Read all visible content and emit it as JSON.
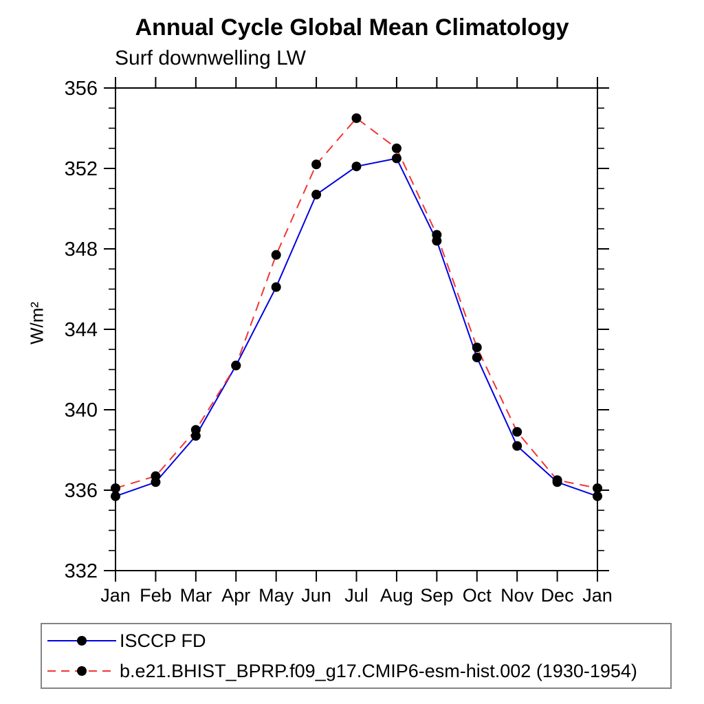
{
  "chart_data": {
    "type": "line",
    "title": "Annual Cycle Global Mean Climatology",
    "subtitle": "Surf downwelling LW",
    "ylabel": "W/m²",
    "xlabel": "",
    "categories": [
      "Jan",
      "Feb",
      "Mar",
      "Apr",
      "May",
      "Jun",
      "Jul",
      "Aug",
      "Sep",
      "Oct",
      "Nov",
      "Dec",
      "Jan"
    ],
    "ylim": [
      332,
      356
    ],
    "y_major_ticks": [
      332,
      336,
      340,
      344,
      348,
      352,
      356
    ],
    "y_minor_step": 1,
    "grid": false,
    "legend_position": "bottom-left",
    "marker": {
      "shape": "circle",
      "color": "#000000",
      "radius": 7
    },
    "series": [
      {
        "name": "ISCCP FD",
        "color": "#0000e0",
        "line_style": "solid",
        "values": [
          335.7,
          336.4,
          338.7,
          342.2,
          346.1,
          350.7,
          352.1,
          352.5,
          348.4,
          342.6,
          338.2,
          336.4,
          335.7
        ]
      },
      {
        "name": "b.e21.BHIST_BPRP.f09_g17.CMIP6-esm-hist.002 (1930-1954)",
        "color": "#f23535",
        "line_style": "dashed",
        "values": [
          336.1,
          336.7,
          339.0,
          342.2,
          347.7,
          352.2,
          354.5,
          353.0,
          348.7,
          343.1,
          338.9,
          336.5,
          336.1
        ]
      }
    ]
  }
}
